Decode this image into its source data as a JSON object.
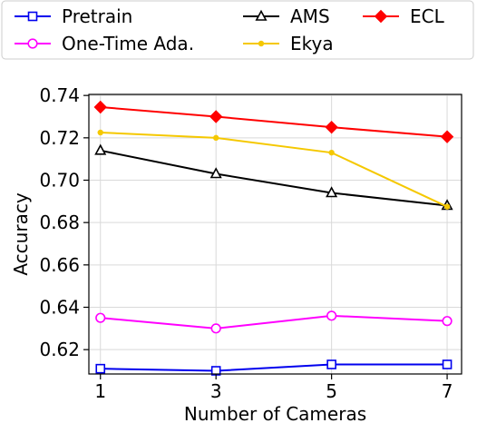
{
  "chart_data": {
    "type": "line",
    "xlabel": "Number of Cameras",
    "ylabel": "Accuracy",
    "x": [
      1,
      3,
      5,
      7
    ],
    "xlim": [
      0.8,
      7.25
    ],
    "ylim": [
      0.6085,
      0.7405
    ],
    "xticks": [
      "1",
      "3",
      "5",
      "7"
    ],
    "yticks": [
      "0.62",
      "0.64",
      "0.66",
      "0.68",
      "0.70",
      "0.72",
      "0.74"
    ],
    "grid": true,
    "legend_position": "top, outside plot area",
    "series": [
      {
        "name": "Pretrain",
        "color": "#0000ee",
        "marker": "square-open",
        "values": [
          0.611,
          0.61,
          0.613,
          0.613
        ]
      },
      {
        "name": "One-Time Ada.",
        "color": "#ff00ff",
        "marker": "circle-open",
        "values": [
          0.635,
          0.63,
          0.636,
          0.6335
        ]
      },
      {
        "name": "AMS",
        "color": "#000000",
        "marker": "triangle-open",
        "values": [
          0.714,
          0.703,
          0.694,
          0.688
        ]
      },
      {
        "name": "Ekya",
        "color": "#f5c800",
        "marker": "dot",
        "values": [
          0.7225,
          0.72,
          0.713,
          0.6875
        ]
      },
      {
        "name": "ECL",
        "color": "#ff0000",
        "marker": "diamond-filled",
        "values": [
          0.7345,
          0.73,
          0.725,
          0.7205
        ]
      }
    ]
  }
}
